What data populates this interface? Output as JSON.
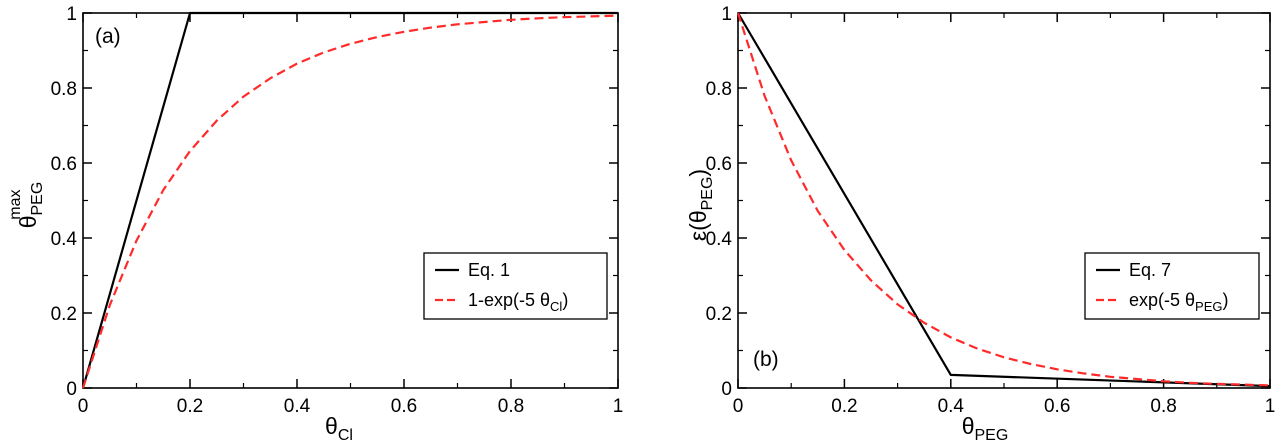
{
  "chart_data": [
    {
      "type": "line",
      "panel_label": "(a)",
      "xlabel": {
        "main": "θ",
        "sub": "Cl"
      },
      "ylabel": {
        "main": "θ",
        "sub": "PEG",
        "sup": "max"
      },
      "xlim": [
        0,
        1
      ],
      "ylim": [
        0,
        1
      ],
      "x_ticks": [
        0,
        0.2,
        0.4,
        0.6,
        0.8,
        1
      ],
      "x_tick_labels": [
        "0",
        "0.2",
        "0.4",
        "0.6",
        "0.8",
        "1"
      ],
      "y_ticks": [
        0,
        0.2,
        0.4,
        0.6,
        0.8,
        1
      ],
      "y_tick_labels": [
        "0",
        "0.2",
        "0.4",
        "0.6",
        "0.8",
        "1"
      ],
      "grid": false,
      "legend_position": "lower-right",
      "series": [
        {
          "name": "Eq. 1",
          "color": "#000000",
          "dash": "solid",
          "x": [
            0,
            0.2,
            1
          ],
          "y": [
            0,
            1,
            1
          ]
        },
        {
          "name_main": "1-exp(-5 θ",
          "name_sub": "Cl",
          "name_tail": ")",
          "color": "#ff2a2a",
          "dash": "dashed",
          "x": [
            0,
            0.05,
            0.1,
            0.15,
            0.2,
            0.25,
            0.3,
            0.35,
            0.4,
            0.45,
            0.5,
            0.55,
            0.6,
            0.65,
            0.7,
            0.75,
            0.8,
            0.85,
            0.9,
            0.95,
            1
          ],
          "y": [
            0,
            0.221,
            0.393,
            0.528,
            0.632,
            0.713,
            0.777,
            0.826,
            0.865,
            0.895,
            0.918,
            0.936,
            0.95,
            0.961,
            0.97,
            0.976,
            0.982,
            0.986,
            0.989,
            0.991,
            0.993
          ]
        }
      ]
    },
    {
      "type": "line",
      "panel_label": "(b)",
      "xlabel": {
        "main": "θ",
        "sub": "PEG"
      },
      "ylabel": {
        "main": "ε(θ",
        "sub": "PEG",
        "tail": ")"
      },
      "xlim": [
        0,
        1
      ],
      "ylim": [
        0,
        1
      ],
      "x_ticks": [
        0,
        0.2,
        0.4,
        0.6,
        0.8,
        1
      ],
      "x_tick_labels": [
        "0",
        "0.2",
        "0.4",
        "0.6",
        "0.8",
        "1"
      ],
      "y_ticks": [
        0,
        0.2,
        0.4,
        0.6,
        0.8,
        1
      ],
      "y_tick_labels": [
        "0",
        "0.2",
        "0.4",
        "0.6",
        "0.8",
        "1"
      ],
      "grid": false,
      "legend_position": "lower-right",
      "series": [
        {
          "name": "Eq. 7",
          "color": "#000000",
          "dash": "solid",
          "x": [
            0,
            0.4,
            1
          ],
          "y": [
            1,
            0.035,
            0.005
          ]
        },
        {
          "name_main": "exp(-5 θ",
          "name_sub": "PEG",
          "name_tail": ")",
          "color": "#ff2a2a",
          "dash": "dashed",
          "x": [
            0,
            0.05,
            0.1,
            0.15,
            0.2,
            0.25,
            0.3,
            0.35,
            0.4,
            0.45,
            0.5,
            0.55,
            0.6,
            0.65,
            0.7,
            0.75,
            0.8,
            0.85,
            0.9,
            0.95,
            1
          ],
          "y": [
            1,
            0.779,
            0.607,
            0.472,
            0.368,
            0.287,
            0.223,
            0.174,
            0.135,
            0.105,
            0.082,
            0.064,
            0.05,
            0.039,
            0.03,
            0.024,
            0.018,
            0.014,
            0.011,
            0.009,
            0.007
          ]
        }
      ]
    }
  ]
}
